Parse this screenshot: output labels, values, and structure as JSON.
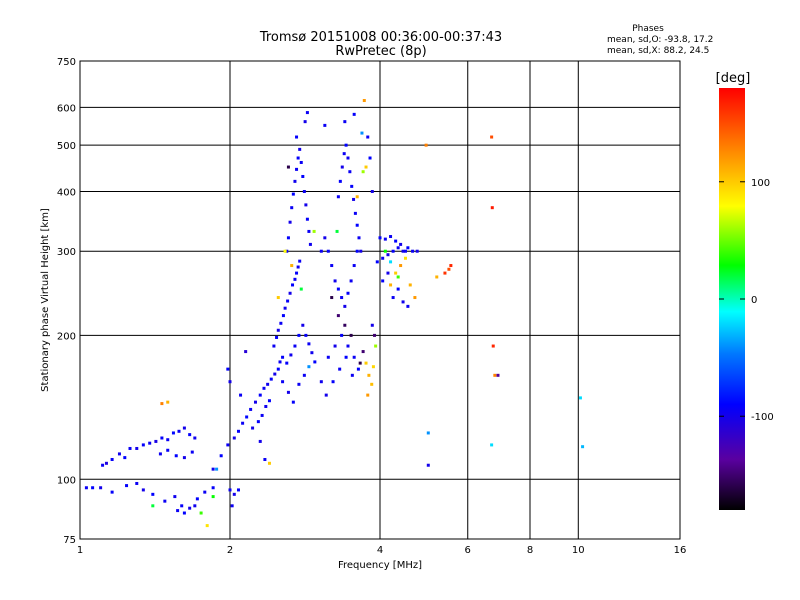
{
  "chart_data": {
    "type": "scatter",
    "title": "Tromsø 20151008 00:36:00-00:37:43",
    "subtitle": "RwPretec (8p)",
    "xlabel": "Frequency [MHz]",
    "ylabel": "Stationary phase Virtual Height [km]",
    "x_scale": "log",
    "y_scale": "log",
    "xlim": [
      1,
      16
    ],
    "ylim": [
      75,
      750
    ],
    "x_ticks": [
      1,
      2,
      4,
      6,
      8,
      10,
      16
    ],
    "y_ticks": [
      75,
      100,
      200,
      300,
      400,
      500,
      600,
      750
    ],
    "grid": true,
    "stats": {
      "title": "Phases",
      "line_o": "mean, sd,O: -93.8, 17.2",
      "line_x": "mean, sd,X:  88.2, 24.5"
    },
    "colorbar": {
      "label": "[deg]",
      "range": [
        -180,
        180
      ],
      "ticks": [
        100,
        0,
        -100
      ]
    },
    "series": [
      {
        "points": [
          [
            1.03,
            96,
            -95
          ],
          [
            1.06,
            96,
            -90
          ],
          [
            1.1,
            96,
            -100
          ],
          [
            1.16,
            94,
            -92
          ],
          [
            1.11,
            107,
            -95
          ],
          [
            1.13,
            108,
            -105
          ],
          [
            1.16,
            110,
            -93
          ],
          [
            1.2,
            113,
            -98
          ],
          [
            1.23,
            111,
            -90
          ],
          [
            1.26,
            116,
            -95
          ],
          [
            1.3,
            116,
            -100
          ],
          [
            1.34,
            118,
            -92
          ],
          [
            1.38,
            119,
            -95
          ],
          [
            1.42,
            120,
            -103
          ],
          [
            1.46,
            122,
            -92
          ],
          [
            1.5,
            121,
            -95
          ],
          [
            1.54,
            125,
            -88
          ],
          [
            1.58,
            126,
            -96
          ],
          [
            1.62,
            128,
            -100
          ],
          [
            1.66,
            124,
            -92
          ],
          [
            1.7,
            122,
            -98
          ],
          [
            1.45,
            113,
            -96
          ],
          [
            1.5,
            115,
            -93
          ],
          [
            1.56,
            112,
            -90
          ],
          [
            1.62,
            111,
            -100
          ],
          [
            1.68,
            114,
            -95
          ],
          [
            1.24,
            97,
            -92
          ],
          [
            1.3,
            98,
            -96
          ],
          [
            1.34,
            95,
            -100
          ],
          [
            1.4,
            93,
            -90
          ],
          [
            1.48,
            90,
            -95
          ],
          [
            1.55,
            92,
            -98
          ],
          [
            1.6,
            88,
            -93
          ],
          [
            1.66,
            87,
            -100
          ],
          [
            1.72,
            91,
            -90
          ],
          [
            1.78,
            94,
            -95
          ],
          [
            1.85,
            96,
            -92
          ],
          [
            1.57,
            86,
            -95
          ],
          [
            1.62,
            85,
            -90
          ],
          [
            1.7,
            88,
            -98
          ],
          [
            1.4,
            88,
            20
          ],
          [
            1.85,
            92,
            30
          ],
          [
            1.8,
            80,
            90
          ],
          [
            1.85,
            105,
            -98
          ],
          [
            1.92,
            112,
            -90
          ],
          [
            1.98,
            118,
            -95
          ],
          [
            2.04,
            122,
            -100
          ],
          [
            2.08,
            126,
            -92
          ],
          [
            2.12,
            131,
            -95
          ],
          [
            2.16,
            135,
            -88
          ],
          [
            2.2,
            140,
            -96
          ],
          [
            2.25,
            145,
            -100
          ],
          [
            2.3,
            150,
            -92
          ],
          [
            2.34,
            155,
            -95
          ],
          [
            2.38,
            158,
            -98
          ],
          [
            2.42,
            162,
            -93
          ],
          [
            2.46,
            166,
            -100
          ],
          [
            2.5,
            170,
            -90
          ],
          [
            2.52,
            176,
            -95
          ],
          [
            2.55,
            180,
            -92
          ],
          [
            2.22,
            128,
            -100
          ],
          [
            2.28,
            132,
            -92
          ],
          [
            2.32,
            136,
            -95
          ],
          [
            2.36,
            142,
            -98
          ],
          [
            2.4,
            146,
            -90
          ],
          [
            2.0,
            95,
            -95
          ],
          [
            2.04,
            93,
            -100
          ],
          [
            2.08,
            95,
            -92
          ],
          [
            2.02,
            88,
            -96
          ],
          [
            2.45,
            190,
            -96
          ],
          [
            2.48,
            198,
            -92
          ],
          [
            2.5,
            205,
            -100
          ],
          [
            2.53,
            212,
            -95
          ],
          [
            2.56,
            220,
            -90
          ],
          [
            2.58,
            228,
            -98
          ],
          [
            2.61,
            236,
            -93
          ],
          [
            2.64,
            245,
            -100
          ],
          [
            2.67,
            255,
            -90
          ],
          [
            2.7,
            262,
            -95
          ],
          [
            2.72,
            270,
            -92
          ],
          [
            2.74,
            278,
            -100
          ],
          [
            2.76,
            286,
            -95
          ],
          [
            2.6,
            175,
            -92
          ],
          [
            2.65,
            182,
            -98
          ],
          [
            2.7,
            190,
            -95
          ],
          [
            2.75,
            200,
            -90
          ],
          [
            2.8,
            210,
            -100
          ],
          [
            2.84,
            200,
            -93
          ],
          [
            2.88,
            192,
            -95
          ],
          [
            2.92,
            184,
            -98
          ],
          [
            2.96,
            176,
            -90
          ],
          [
            2.55,
            160,
            -95
          ],
          [
            2.62,
            152,
            -100
          ],
          [
            2.68,
            145,
            -92
          ],
          [
            2.75,
            158,
            -96
          ],
          [
            2.82,
            165,
            -95
          ],
          [
            2.88,
            172,
            -40
          ],
          [
            2.6,
            300,
            -95
          ],
          [
            2.62,
            320,
            -92
          ],
          [
            2.64,
            345,
            -100
          ],
          [
            2.66,
            370,
            -95
          ],
          [
            2.68,
            395,
            -90
          ],
          [
            2.7,
            420,
            -98
          ],
          [
            2.72,
            445,
            -95
          ],
          [
            2.74,
            470,
            -92
          ],
          [
            2.76,
            490,
            -100
          ],
          [
            2.78,
            460,
            -95
          ],
          [
            2.8,
            430,
            -90
          ],
          [
            2.82,
            400,
            -96
          ],
          [
            2.84,
            375,
            -100
          ],
          [
            2.86,
            350,
            -92
          ],
          [
            2.88,
            330,
            -95
          ],
          [
            2.9,
            310,
            -98
          ],
          [
            2.83,
            560,
            -100
          ],
          [
            2.86,
            585,
            -95
          ],
          [
            2.72,
            520,
            -92
          ],
          [
            2.62,
            450,
            -160
          ],
          [
            2.58,
            300,
            80
          ],
          [
            2.66,
            280,
            110
          ],
          [
            2.95,
            330,
            60
          ],
          [
            2.78,
            250,
            20
          ],
          [
            2.5,
            240,
            100
          ],
          [
            3.05,
            300,
            -95
          ],
          [
            3.1,
            320,
            -100
          ],
          [
            3.15,
            300,
            -92
          ],
          [
            3.2,
            280,
            -95
          ],
          [
            3.25,
            260,
            -98
          ],
          [
            3.3,
            250,
            -90
          ],
          [
            3.35,
            240,
            -95
          ],
          [
            3.4,
            230,
            -100
          ],
          [
            3.45,
            245,
            -92
          ],
          [
            3.5,
            260,
            -96
          ],
          [
            3.55,
            280,
            -95
          ],
          [
            3.6,
            300,
            -90
          ],
          [
            3.2,
            240,
            -160
          ],
          [
            3.3,
            220,
            -150
          ],
          [
            3.4,
            210,
            -155
          ],
          [
            3.5,
            200,
            -160
          ],
          [
            3.15,
            180,
            -95
          ],
          [
            3.25,
            190,
            -100
          ],
          [
            3.35,
            200,
            -92
          ],
          [
            3.45,
            190,
            -96
          ],
          [
            3.55,
            180,
            -95
          ],
          [
            3.62,
            170,
            -90
          ],
          [
            3.05,
            160,
            -98
          ],
          [
            3.12,
            150,
            -100
          ],
          [
            3.22,
            160,
            -92
          ],
          [
            3.32,
            170,
            -95
          ],
          [
            3.42,
            180,
            -90
          ],
          [
            3.52,
            165,
            -96
          ],
          [
            3.65,
            175,
            -160
          ],
          [
            3.7,
            185,
            -150
          ],
          [
            3.3,
            390,
            -95
          ],
          [
            3.33,
            420,
            -92
          ],
          [
            3.36,
            450,
            -100
          ],
          [
            3.39,
            480,
            -95
          ],
          [
            3.42,
            500,
            -90
          ],
          [
            3.45,
            470,
            -98
          ],
          [
            3.48,
            440,
            -95
          ],
          [
            3.51,
            410,
            -92
          ],
          [
            3.54,
            385,
            -100
          ],
          [
            3.57,
            360,
            -95
          ],
          [
            3.6,
            340,
            -90
          ],
          [
            3.63,
            320,
            -96
          ],
          [
            3.66,
            300,
            -100
          ],
          [
            3.4,
            560,
            -95
          ],
          [
            3.55,
            580,
            -92
          ],
          [
            3.7,
            440,
            60
          ],
          [
            3.75,
            450,
            100
          ],
          [
            3.78,
            520,
            -95
          ],
          [
            3.82,
            470,
            -90
          ],
          [
            3.86,
            400,
            -100
          ],
          [
            3.28,
            330,
            20
          ],
          [
            3.6,
            390,
            110
          ],
          [
            3.72,
            620,
            120
          ],
          [
            3.68,
            530,
            -40
          ],
          [
            3.1,
            550,
            -95
          ],
          [
            3.75,
            175,
            100
          ],
          [
            3.8,
            165,
            110
          ],
          [
            3.85,
            158,
            105
          ],
          [
            3.78,
            150,
            120
          ],
          [
            3.88,
            172,
            95
          ],
          [
            3.9,
            200,
            -150
          ],
          [
            3.92,
            190,
            60
          ],
          [
            3.86,
            210,
            -100
          ],
          [
            3.95,
            285,
            -90
          ],
          [
            4.05,
            290,
            -95
          ],
          [
            4.15,
            295,
            -100
          ],
          [
            4.25,
            300,
            -92
          ],
          [
            4.35,
            305,
            -95
          ],
          [
            4.45,
            300,
            -98
          ],
          [
            4.55,
            305,
            -90
          ],
          [
            4.65,
            300,
            -95
          ],
          [
            4.75,
            300,
            -100
          ],
          [
            4.0,
            320,
            -92
          ],
          [
            4.1,
            318,
            -95
          ],
          [
            4.2,
            322,
            -96
          ],
          [
            4.3,
            315,
            -90
          ],
          [
            4.4,
            310,
            -100
          ],
          [
            4.5,
            300,
            -95
          ],
          [
            4.05,
            260,
            -92
          ],
          [
            4.15,
            270,
            -100
          ],
          [
            4.25,
            240,
            -95
          ],
          [
            4.35,
            250,
            -90
          ],
          [
            4.45,
            235,
            -98
          ],
          [
            4.55,
            230,
            -95
          ],
          [
            4.2,
            255,
            110
          ],
          [
            4.3,
            270,
            100
          ],
          [
            4.4,
            280,
            120
          ],
          [
            4.5,
            290,
            90
          ],
          [
            4.1,
            300,
            30
          ],
          [
            4.2,
            285,
            -20
          ],
          [
            4.35,
            265,
            40
          ],
          [
            4.6,
            255,
            110
          ],
          [
            4.7,
            240,
            120
          ],
          [
            5.4,
            270,
            160
          ],
          [
            5.5,
            275,
            150
          ],
          [
            5.55,
            280,
            165
          ],
          [
            5.2,
            265,
            110
          ],
          [
            4.95,
            500,
            130
          ],
          [
            5.0,
            125,
            -40
          ],
          [
            5.0,
            107,
            -100
          ],
          [
            6.7,
            520,
            150
          ],
          [
            6.72,
            370,
            170
          ],
          [
            6.75,
            190,
            165
          ],
          [
            6.8,
            165,
            130
          ],
          [
            6.9,
            165,
            -140
          ],
          [
            6.7,
            118,
            -20
          ],
          [
            10.1,
            148,
            -20
          ],
          [
            10.2,
            117,
            -30
          ],
          [
            2.0,
            160,
            -100
          ],
          [
            1.98,
            170,
            -90
          ],
          [
            2.15,
            185,
            -110
          ],
          [
            2.1,
            150,
            -95
          ],
          [
            1.88,
            105,
            -40
          ],
          [
            1.75,
            85,
            40
          ],
          [
            1.46,
            144,
            130
          ],
          [
            1.5,
            145,
            110
          ],
          [
            2.4,
            108,
            100
          ],
          [
            2.3,
            120,
            -100
          ],
          [
            2.35,
            110,
            -95
          ]
        ]
      }
    ]
  }
}
